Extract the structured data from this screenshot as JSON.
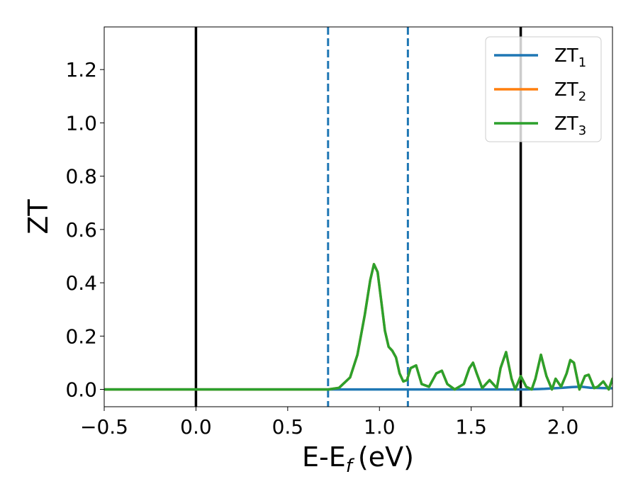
{
  "chart_data": {
    "type": "line",
    "xlabel": "E-E",
    "xlabel_sub": "f",
    "xlabel_unit": "(eV)",
    "ylabel": "ZT",
    "xlim": [
      -0.5,
      2.27
    ],
    "ylim": [
      -0.065,
      1.36
    ],
    "x_ticks": [
      -0.5,
      0.0,
      0.5,
      1.0,
      1.5,
      2.0
    ],
    "x_tick_labels": [
      "−0.5",
      "0.0",
      "0.5",
      "1.0",
      "1.5",
      "2.0"
    ],
    "y_ticks": [
      0.0,
      0.2,
      0.4,
      0.6,
      0.8,
      1.0,
      1.2
    ],
    "y_tick_labels": [
      "0.0",
      "0.2",
      "0.4",
      "0.6",
      "0.8",
      "1.0",
      "1.2"
    ],
    "grid": false,
    "legend_position": "top-right",
    "vlines": [
      {
        "x": 0.0,
        "color": "#000000",
        "style": "solid"
      },
      {
        "x": 1.77,
        "color": "#000000",
        "style": "solid"
      },
      {
        "x": 0.72,
        "color": "#1f77b4",
        "style": "dashed"
      },
      {
        "x": 1.155,
        "color": "#1f77b4",
        "style": "dashed"
      }
    ],
    "series": [
      {
        "name": "ZT",
        "name_sub": "1",
        "color": "#1f77b4",
        "x": [
          -0.5,
          0.0,
          0.5,
          1.0,
          1.5,
          1.8,
          1.9,
          2.0,
          2.05,
          2.1,
          2.15,
          2.27
        ],
        "y": [
          0.0,
          0.0,
          0.0,
          0.0,
          0.0,
          0.0,
          0.002,
          0.006,
          0.009,
          0.01,
          0.006,
          0.004
        ]
      },
      {
        "name": "ZT",
        "name_sub": "2",
        "color": "#ff7f0e",
        "x": [
          -0.5,
          0.0,
          0.5,
          0.72,
          0.78,
          0.84,
          0.88,
          0.92,
          0.95,
          0.97,
          0.99,
          1.01,
          1.03,
          1.05,
          1.07,
          1.09,
          1.11,
          1.13,
          1.15,
          1.17,
          1.2,
          1.23,
          1.27,
          1.31,
          1.34,
          1.37,
          1.41,
          1.46,
          1.49,
          1.51,
          1.53,
          1.56,
          1.6,
          1.64,
          1.66,
          1.69,
          1.72,
          1.74,
          1.77,
          1.8,
          1.83,
          1.85,
          1.88,
          1.91,
          1.94,
          1.96,
          1.99,
          2.02,
          2.04,
          2.06,
          2.09,
          2.12,
          2.14,
          2.17,
          2.19,
          2.22,
          2.25,
          2.27
        ],
        "y": [
          0.0,
          0.0,
          0.0,
          0.0,
          0.006,
          0.045,
          0.13,
          0.28,
          0.41,
          0.47,
          0.44,
          0.33,
          0.22,
          0.16,
          0.145,
          0.12,
          0.06,
          0.03,
          0.035,
          0.08,
          0.09,
          0.02,
          0.01,
          0.06,
          0.07,
          0.02,
          0.0,
          0.02,
          0.08,
          0.1,
          0.06,
          0.005,
          0.035,
          0.005,
          0.08,
          0.14,
          0.04,
          0.0,
          0.05,
          0.01,
          0.0,
          0.04,
          0.13,
          0.05,
          0.0,
          0.04,
          0.01,
          0.06,
          0.11,
          0.1,
          0.0,
          0.05,
          0.055,
          0.005,
          0.01,
          0.03,
          0.0,
          0.04
        ]
      },
      {
        "name": "ZT",
        "name_sub": "3",
        "color": "#2ca02c",
        "x": [
          -0.5,
          0.0,
          0.5,
          0.72,
          0.78,
          0.84,
          0.88,
          0.92,
          0.95,
          0.97,
          0.99,
          1.01,
          1.03,
          1.05,
          1.07,
          1.09,
          1.11,
          1.13,
          1.15,
          1.17,
          1.2,
          1.23,
          1.27,
          1.31,
          1.34,
          1.37,
          1.41,
          1.46,
          1.49,
          1.51,
          1.53,
          1.56,
          1.6,
          1.64,
          1.66,
          1.69,
          1.72,
          1.74,
          1.77,
          1.8,
          1.83,
          1.85,
          1.88,
          1.91,
          1.94,
          1.96,
          1.99,
          2.02,
          2.04,
          2.06,
          2.09,
          2.12,
          2.14,
          2.17,
          2.19,
          2.22,
          2.25,
          2.27
        ],
        "y": [
          0.0,
          0.0,
          0.0,
          0.0,
          0.006,
          0.045,
          0.13,
          0.28,
          0.41,
          0.47,
          0.44,
          0.33,
          0.22,
          0.16,
          0.145,
          0.12,
          0.06,
          0.03,
          0.035,
          0.08,
          0.09,
          0.02,
          0.01,
          0.06,
          0.07,
          0.02,
          0.0,
          0.02,
          0.08,
          0.1,
          0.06,
          0.005,
          0.035,
          0.005,
          0.08,
          0.14,
          0.04,
          0.0,
          0.05,
          0.01,
          0.0,
          0.04,
          0.13,
          0.05,
          0.0,
          0.04,
          0.01,
          0.06,
          0.11,
          0.1,
          0.0,
          0.05,
          0.055,
          0.005,
          0.01,
          0.03,
          0.0,
          0.04
        ]
      }
    ]
  }
}
